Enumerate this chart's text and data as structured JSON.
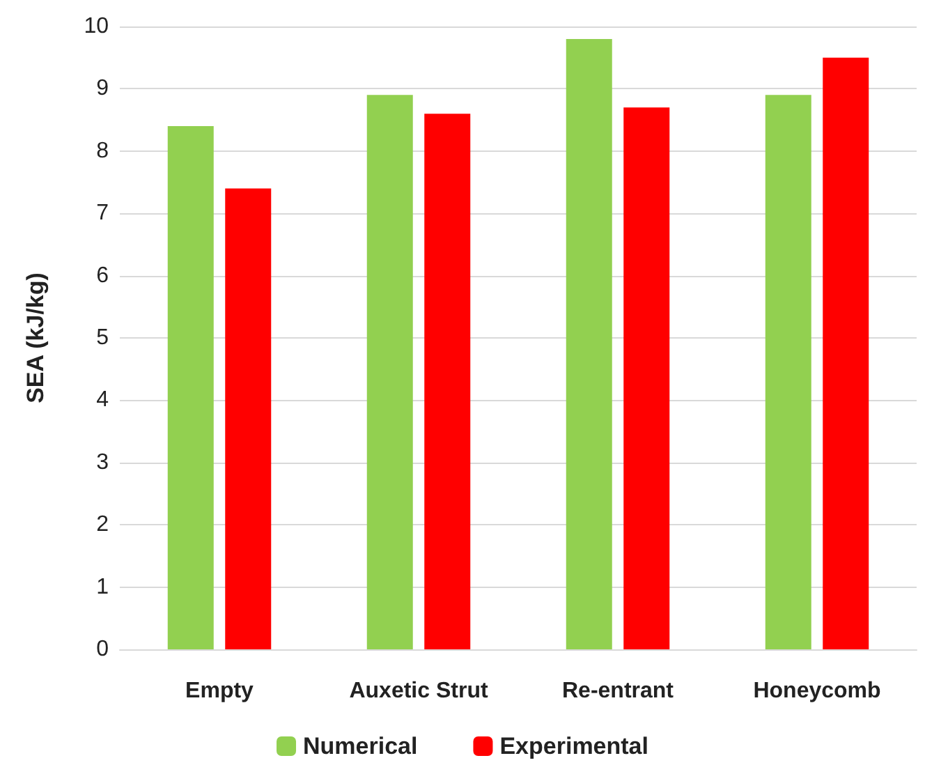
{
  "chart_data": {
    "type": "bar",
    "ylabel": "SEA (kJ/kg)",
    "categories": [
      "Empty",
      "Auxetic Strut",
      "Re-entrant",
      "Honeycomb"
    ],
    "series": [
      {
        "name": "Numerical",
        "color": "#92d050",
        "values": [
          8.4,
          8.9,
          9.8,
          8.9
        ]
      },
      {
        "name": "Experimental",
        "color": "#ff0000",
        "values": [
          7.4,
          8.6,
          8.7,
          9.5
        ]
      }
    ],
    "ylim": [
      0,
      10
    ],
    "yticks": [
      0,
      1,
      2,
      3,
      4,
      5,
      6,
      7,
      8,
      9,
      10
    ],
    "grid": "y",
    "legend": "bottom"
  }
}
